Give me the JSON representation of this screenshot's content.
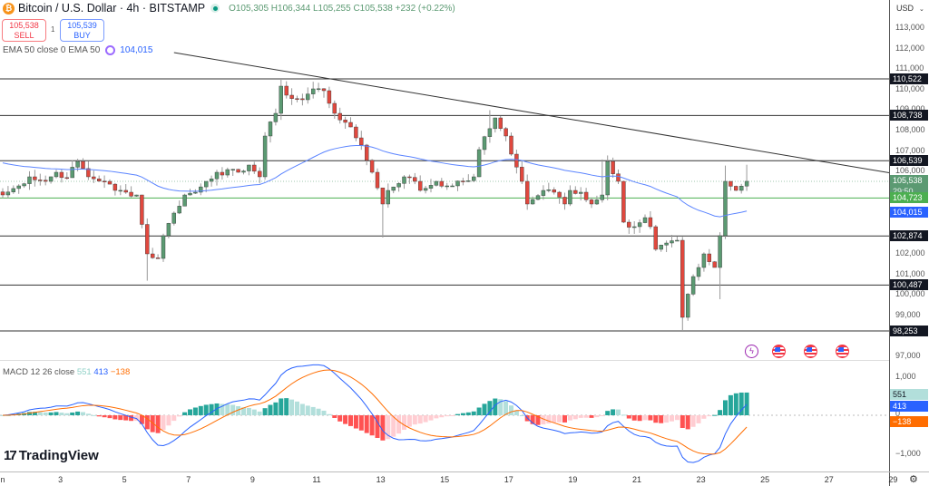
{
  "header": {
    "symbol_icon": "bitcoin-icon",
    "title": "Bitcoin / U.S. Dollar · 4h · BITSTAMP",
    "open": "O105,305",
    "high": "H106,344",
    "low": "L105,255",
    "close": "C105,538",
    "change": "+232 (+0.22%)"
  },
  "trade": {
    "sell_price": "105,538",
    "sell_label": "SELL",
    "quantity": "1",
    "buy_price": "105,539",
    "buy_label": "BUY"
  },
  "ema_legend": {
    "label": "EMA 50 close 0 EMA 50",
    "value": "104,015",
    "color": "#2962ff"
  },
  "macd_legend": {
    "label": "MACD 12 26 close",
    "histogram": "551",
    "macd": "413",
    "signal": "−138"
  },
  "price_axis": {
    "currency": "USD",
    "labels": [
      "113,000",
      "112,000",
      "111,000",
      "110,000",
      "109,000",
      "108,000",
      "107,000",
      "106,000",
      "102,000",
      "101,000",
      "100,000",
      "99,000",
      "97,000"
    ],
    "label_values": [
      113000,
      112000,
      111000,
      110000,
      109000,
      108000,
      107000,
      106000,
      102000,
      101000,
      100000,
      99000,
      97000
    ]
  },
  "levels": [
    {
      "price": 110522,
      "label": "110,522"
    },
    {
      "price": 108738,
      "label": "108,738"
    },
    {
      "price": 106539,
      "label": "106,539"
    },
    {
      "price": 102874,
      "label": "102,874"
    },
    {
      "price": 100487,
      "label": "100,487"
    },
    {
      "price": 98253,
      "label": "98,253"
    }
  ],
  "current": {
    "price": 105538,
    "label": "105,538",
    "countdown": "29:50",
    "color": "#5b9a72"
  },
  "green_line": {
    "price": 104723,
    "label": "104,723",
    "color": "#4caf50"
  },
  "ema_tag": {
    "label": "104,015",
    "color": "#2962ff"
  },
  "macd_axis": {
    "top": "1,000",
    "zero": "0",
    "bottom": "−1,000",
    "hist_tag": "551",
    "macd_tag": "413",
    "signal_tag": "−138"
  },
  "time_axis": [
    "n",
    "3",
    "5",
    "7",
    "9",
    "11",
    "13",
    "15",
    "17",
    "19",
    "21",
    "23",
    "25",
    "27",
    "29"
  ],
  "trendline": [
    [
      32,
      111800
    ],
    [
      170,
      105760
    ]
  ],
  "chart_data": {
    "type": "candlestick",
    "title": "Bitcoin / U.S. Dollar · 4h · BITSTAMP",
    "candles_per_day": 6,
    "close_keypoints": [
      [
        0,
        104873
      ],
      [
        3,
        105315
      ],
      [
        5,
        105756
      ],
      [
        8,
        105535
      ],
      [
        10,
        105977
      ],
      [
        12,
        105712
      ],
      [
        14,
        106506
      ],
      [
        16,
        105756
      ],
      [
        19,
        105535
      ],
      [
        21,
        105094
      ],
      [
        23,
        105006
      ],
      [
        25,
        104873
      ],
      [
        27,
        102005
      ],
      [
        29,
        101784
      ],
      [
        30,
        102888
      ],
      [
        32,
        103991
      ],
      [
        34,
        104873
      ],
      [
        36,
        105006
      ],
      [
        38,
        105535
      ],
      [
        40,
        105977
      ],
      [
        44,
        105977
      ],
      [
        46,
        106330
      ],
      [
        48,
        105756
      ],
      [
        49,
        107742
      ],
      [
        51,
        108845
      ],
      [
        52,
        110169
      ],
      [
        53,
        109728
      ],
      [
        56,
        109507
      ],
      [
        58,
        110037
      ],
      [
        60,
        109948
      ],
      [
        62,
        108845
      ],
      [
        64,
        108404
      ],
      [
        67,
        107301
      ],
      [
        69,
        105977
      ],
      [
        71,
        104432
      ],
      [
        72,
        105094
      ],
      [
        75,
        105756
      ],
      [
        77,
        105535
      ],
      [
        78,
        105094
      ],
      [
        81,
        105535
      ],
      [
        83,
        105315
      ],
      [
        84,
        105315
      ],
      [
        86,
        105535
      ],
      [
        88,
        105756
      ],
      [
        89,
        107080
      ],
      [
        92,
        108624
      ],
      [
        94,
        107742
      ],
      [
        95,
        106859
      ],
      [
        97,
        105535
      ],
      [
        98,
        104432
      ],
      [
        99,
        104653
      ],
      [
        101,
        105094
      ],
      [
        103,
        105006
      ],
      [
        105,
        104432
      ],
      [
        106,
        105094
      ],
      [
        108,
        105006
      ],
      [
        110,
        104432
      ],
      [
        112,
        104873
      ],
      [
        113,
        106506
      ],
      [
        115,
        105535
      ],
      [
        116,
        103549
      ],
      [
        118,
        103329
      ],
      [
        120,
        103770
      ],
      [
        121,
        103329
      ],
      [
        122,
        102226
      ],
      [
        124,
        102534
      ],
      [
        126,
        102667
      ],
      [
        127,
        98916
      ],
      [
        129,
        100902
      ],
      [
        130,
        101343
      ],
      [
        131,
        102005
      ],
      [
        133,
        101343
      ],
      [
        134,
        102888
      ],
      [
        135,
        105535
      ],
      [
        137,
        105094
      ],
      [
        138,
        105305
      ],
      [
        139,
        105538
      ]
    ],
    "wick_lows": [
      [
        27,
        100700
      ],
      [
        71,
        102800
      ],
      [
        127,
        98253
      ],
      [
        134,
        99800
      ]
    ],
    "wick_highs": [
      [
        52,
        110522
      ],
      [
        91,
        109000
      ],
      [
        112,
        106600
      ],
      [
        135,
        106300
      ],
      [
        139,
        106344
      ]
    ],
    "ema_period": 50,
    "ema_start": 106500,
    "colors": {
      "up": "#5b9a72",
      "down": "#e0483e",
      "ema": "#5b84ff",
      "macd": "#2962ff",
      "signal": "#ff6d00",
      "hist_up": "#26a69a",
      "hist_up_weak": "#b2dfdb",
      "hist_down": "#ff5252",
      "hist_down_weak": "#ffcdd2"
    }
  },
  "events": [
    {
      "icon": "lightning-icon"
    },
    {
      "icon": "us-flag-icon"
    },
    {
      "icon": "us-flag-icon"
    },
    {
      "icon": "us-flag-icon"
    }
  ],
  "branding": {
    "logo": "TradingView"
  }
}
